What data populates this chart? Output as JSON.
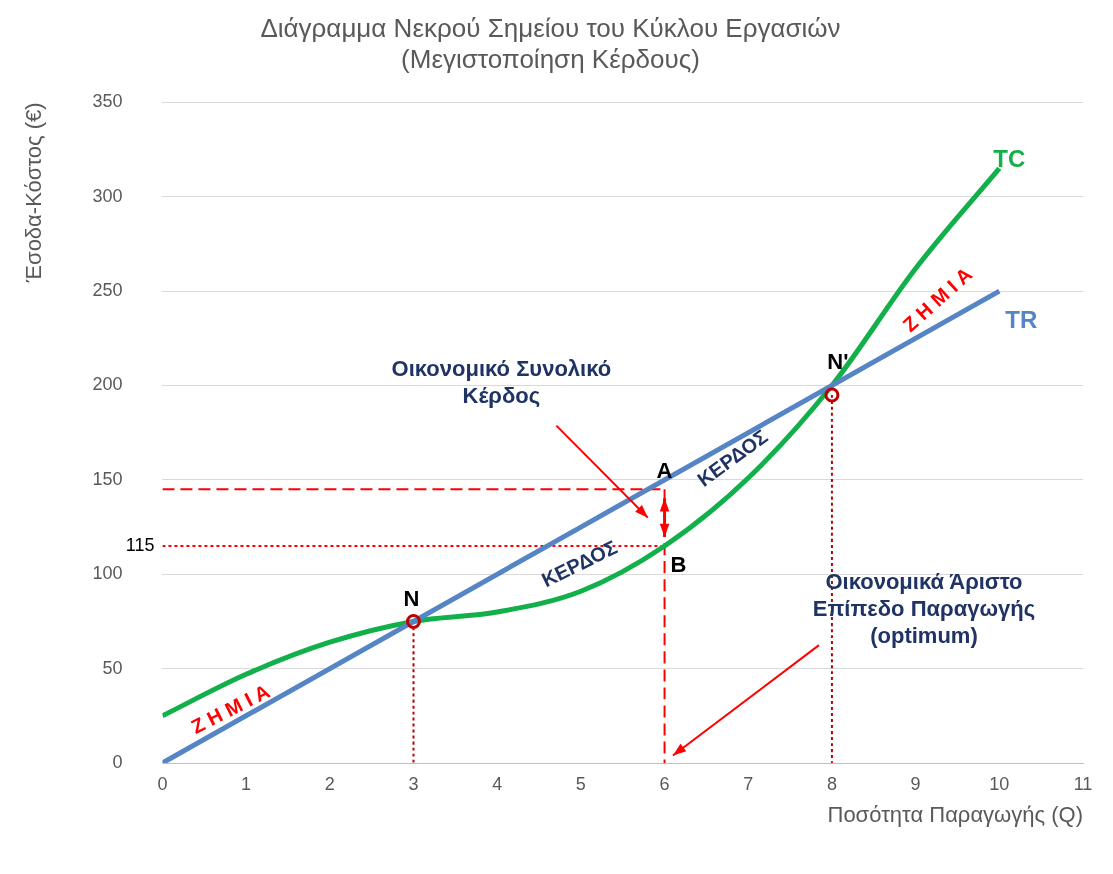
{
  "chart_data": {
    "type": "line",
    "title": "Διάγραμμα Νεκρού Σημείου του Κύκλου Εργασιών\n(Μεγιστοποίηση Κέρδους)",
    "xlabel": "Ποσότητα Παραγωγής (Q)",
    "ylabel": "Έσοδα-Κόστος (€)",
    "xlim": [
      0,
      11
    ],
    "xticks": [
      0,
      1,
      2,
      3,
      4,
      5,
      6,
      7,
      8,
      9,
      10,
      11
    ],
    "ylim": [
      0,
      350
    ],
    "yticks": [
      0,
      50,
      100,
      150,
      200,
      250,
      300,
      350
    ],
    "grid": "y",
    "legend": false,
    "series": [
      {
        "name": "TR",
        "color": "#5585c5",
        "x": [
          0,
          10
        ],
        "values": [
          0,
          250
        ]
      },
      {
        "name": "TC",
        "color": "#12b04a",
        "x": [
          0,
          1,
          2,
          3,
          4,
          5,
          6,
          7,
          8,
          9,
          10
        ],
        "values": [
          25,
          47,
          64,
          75,
          80,
          91,
          115,
          151,
          200,
          262,
          315
        ]
      },
      {
        "color": "#ff0000",
        "line_style": "dashed",
        "x": [
          0,
          6
        ],
        "values": [
          145,
          145
        ]
      },
      {
        "color": "#ff0000",
        "line_style": "dotted",
        "x": [
          0,
          6
        ],
        "values": [
          115,
          115
        ]
      },
      {
        "color": "#ff0000",
        "line_style": "dashed",
        "x": [
          6,
          6
        ],
        "values": [
          145,
          0
        ]
      },
      {
        "color": "#c00000",
        "line_style": "dotted",
        "x": [
          3,
          3
        ],
        "values": [
          75,
          0
        ]
      },
      {
        "color": "#c00000",
        "line_style": "dotted",
        "x": [
          8,
          8
        ],
        "values": [
          195,
          0
        ]
      },
      {
        "type": "scatter",
        "color": "#c00000",
        "marker": "circle",
        "x": [
          3,
          8
        ],
        "values": [
          75,
          195
        ]
      }
    ],
    "annotations": [
      "Οικονομικό Συνολικό\nΚέρδος",
      "Οικονομικά Άριστο\nΕπίπεδο Παραγωγής\n(optimum)",
      "Ζ Η Μ Ι Α",
      "Ζ Η Μ Ι Α",
      "ΚΕΡΔΟΣ",
      "ΚΕΡΔΟΣ",
      {
        "text": "A",
        "x": 6,
        "y": 145
      },
      {
        "text": "B",
        "x": 6,
        "y": 115
      },
      {
        "text": "N",
        "x": 3,
        "y": 75
      },
      {
        "text": "N'",
        "x": 8,
        "y": 195
      },
      {
        "text": "115",
        "x": 0,
        "y": 115
      }
    ]
  }
}
